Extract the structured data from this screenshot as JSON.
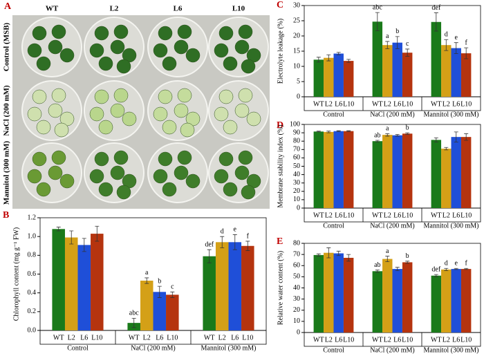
{
  "photo": {
    "panel": "A",
    "columns": [
      "WT",
      "L2",
      "L6",
      "L10"
    ],
    "rows": [
      "Control (MSB)",
      "NaCl (200 mM)",
      "Mannitol (300 mM)"
    ]
  },
  "chart_data": [
    {
      "type": "bar",
      "panel": "B",
      "y_label": "Chlorophyll content (mg g⁻¹ FW)",
      "categories": [
        "Control",
        "NaCl (200 mM)",
        "Mannitol (300 mM)"
      ],
      "ylim": [
        0,
        1.2
      ],
      "yticks": [
        {
          "value": 0,
          "label": "0.0"
        },
        {
          "value": 0.2,
          "label": "0.2"
        },
        {
          "value": 0.4,
          "label": "0.4"
        },
        {
          "value": 0.6,
          "label": "0.6"
        },
        {
          "value": 0.8,
          "label": "0.8"
        },
        {
          "value": 1,
          "label": "1.0"
        },
        {
          "value": 1.2,
          "label": "1.2"
        }
      ],
      "series": [
        {
          "name": "WT",
          "color": "#1a7a1a",
          "values": [
            1.08,
            0.08,
            0.79
          ],
          "errors": [
            0.02,
            0.05,
            0.07
          ],
          "letters": [
            null,
            "abc",
            "def"
          ]
        },
        {
          "name": "L2",
          "color": "#d4a017",
          "values": [
            0.99,
            0.53,
            0.94
          ],
          "errors": [
            0.07,
            0.03,
            0.06
          ],
          "letters": [
            null,
            "a",
            "d"
          ]
        },
        {
          "name": "L6",
          "color": "#1f4fd8",
          "values": [
            0.91,
            0.41,
            0.94
          ],
          "errors": [
            0.07,
            0.06,
            0.08
          ],
          "letters": [
            null,
            "b",
            "e"
          ]
        },
        {
          "name": "L10",
          "color": "#b5340f",
          "values": [
            1.03,
            0.38,
            0.9
          ],
          "errors": [
            0.08,
            0.03,
            0.05
          ],
          "letters": [
            null,
            "c",
            "f"
          ]
        }
      ]
    },
    {
      "type": "bar",
      "panel": "C",
      "y_label": "Electrolyte leakage  (%)",
      "categories": [
        "Control",
        "NaCl (200 mM)",
        "Mannitol (300 mM)"
      ],
      "ylim": [
        0,
        30
      ],
      "yticks": [
        0,
        5,
        10,
        15,
        20,
        25,
        30
      ],
      "series": [
        {
          "name": "WT",
          "color": "#1a7a1a",
          "values": [
            12.2,
            24.7,
            24.6
          ],
          "errors": [
            0.8,
            3,
            3
          ],
          "letters": [
            null,
            "abc",
            "def"
          ]
        },
        {
          "name": "L2",
          "color": "#d4a017",
          "values": [
            12.8,
            17,
            17
          ],
          "errors": [
            1,
            1.2,
            1.8
          ],
          "letters": [
            null,
            "a",
            "d"
          ]
        },
        {
          "name": "L6",
          "color": "#1f4fd8",
          "values": [
            14.2,
            17.8,
            16
          ],
          "errors": [
            0.4,
            2,
            1.8
          ],
          "letters": [
            null,
            "b",
            "e"
          ]
        },
        {
          "name": "L10",
          "color": "#b5340f",
          "values": [
            11.8,
            14.5,
            14.3
          ],
          "errors": [
            0.5,
            1.2,
            1.8
          ],
          "letters": [
            null,
            "c",
            "f"
          ]
        }
      ]
    },
    {
      "type": "bar",
      "panel": "D",
      "y_label": "Membrane stability index (%)",
      "categories": [
        "Control",
        "NaCl (200 mM)",
        "Mannitol (300 mM)"
      ],
      "ylim": [
        0,
        100
      ],
      "yticks": [
        0,
        10,
        20,
        30,
        40,
        50,
        60,
        70,
        80,
        90,
        100
      ],
      "series": [
        {
          "name": "WT",
          "color": "#1a7a1a",
          "values": [
            91.5,
            80,
            81.5
          ],
          "errors": [
            0.5,
            1,
            2.5
          ],
          "letters": [
            null,
            "ab",
            null
          ]
        },
        {
          "name": "L2",
          "color": "#d4a017",
          "values": [
            91,
            87.5,
            71
          ],
          "errors": [
            1,
            1.5,
            1.5
          ],
          "letters": [
            null,
            "a",
            null
          ]
        },
        {
          "name": "L6",
          "color": "#1f4fd8",
          "values": [
            92,
            87,
            85
          ],
          "errors": [
            0.5,
            1,
            6
          ],
          "letters": [
            null,
            null,
            null
          ]
        },
        {
          "name": "L10",
          "color": "#b5340f",
          "values": [
            92,
            89,
            85
          ],
          "errors": [
            0.5,
            1,
            4
          ],
          "letters": [
            null,
            "b",
            null
          ]
        }
      ]
    },
    {
      "type": "bar",
      "panel": "E",
      "y_label": "Relative water content (%)",
      "categories": [
        "Control",
        "NaCl (200 mM)",
        "Mannitol (300 mM)"
      ],
      "ylim": [
        0,
        80
      ],
      "yticks": [
        0,
        10,
        20,
        30,
        40,
        50,
        60,
        70,
        80
      ],
      "series": [
        {
          "name": "WT",
          "color": "#1a7a1a",
          "values": [
            69.5,
            55,
            51
          ],
          "errors": [
            1,
            1,
            1
          ],
          "letters": [
            null,
            "ab",
            "def"
          ]
        },
        {
          "name": "L2",
          "color": "#d4a017",
          "values": [
            71.5,
            66,
            56.5
          ],
          "errors": [
            4.5,
            2.5,
            1
          ],
          "letters": [
            null,
            "a",
            "d"
          ]
        },
        {
          "name": "L6",
          "color": "#1f4fd8",
          "values": [
            71,
            57,
            57
          ],
          "errors": [
            2,
            1.5,
            0.5
          ],
          "letters": [
            null,
            null,
            "e"
          ]
        },
        {
          "name": "L10",
          "color": "#b5340f",
          "values": [
            67,
            63,
            57
          ],
          "errors": [
            3,
            1,
            0.5
          ],
          "letters": [
            null,
            "b",
            "f"
          ]
        }
      ]
    }
  ]
}
